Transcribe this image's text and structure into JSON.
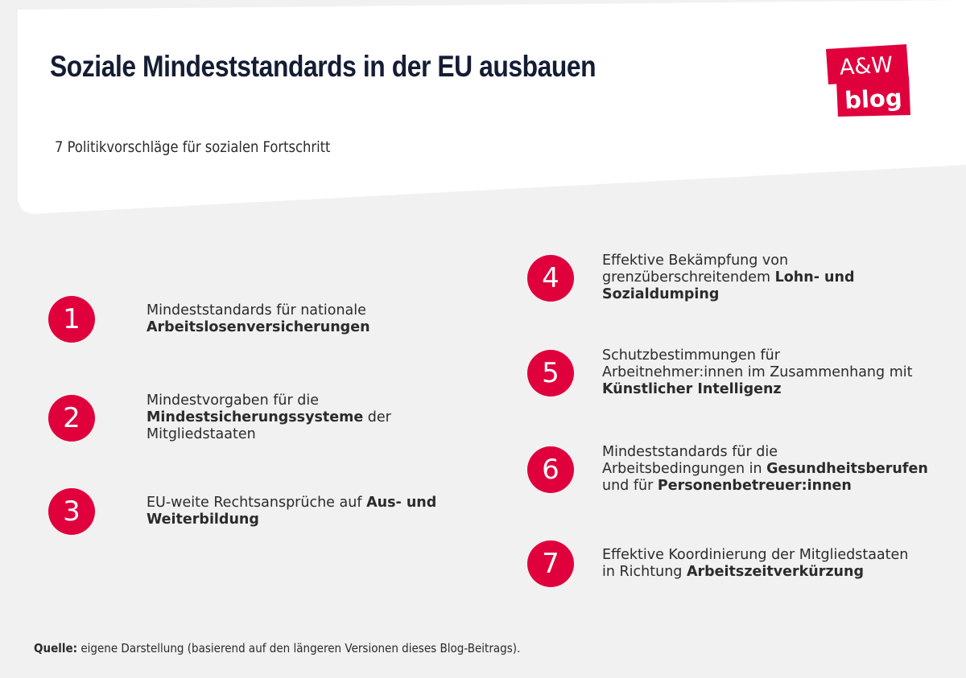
{
  "header": {
    "title": "Soziale Mindeststandards in der EU ausbauen",
    "subtitle": "7 Politikvorschläge für sozialen Fortschritt",
    "logo": {
      "line1": "A&W",
      "line2": "blog"
    }
  },
  "colors": {
    "accent": "#e0003c",
    "title": "#141d33",
    "background": "#f1f1f1"
  },
  "proposals": [
    {
      "number": "1",
      "l1a": "Mindeststandards für nationale",
      "l1b": "",
      "l2a": "",
      "l2b": "Arbeitslosenversicherungen",
      "l3a": "",
      "l3b": "",
      "l3c": ""
    },
    {
      "number": "2",
      "l1a": "Mindestvorgaben für die",
      "l1b": "",
      "l2a": "",
      "l2b": "Mindestsicherungssysteme",
      "l2c": " der",
      "l3a": "Mitgliedstaaten"
    },
    {
      "number": "3",
      "l1a": "EU-weite Rechtsansprüche auf ",
      "l1b": "Aus- und",
      "l2b": "Weiterbildung"
    },
    {
      "number": "4",
      "l1a": "Effektive Bekämpfung von",
      "l2a": "grenzüberschreitendem ",
      "l2b": "Lohn- und",
      "l3b": "Sozialdumping"
    },
    {
      "number": "5",
      "l1a": "Schutzbestimmungen für",
      "l2a": "Arbeitnehmer:innen im Zusammenhang mit",
      "l3b": "Künstlicher Intelligenz"
    },
    {
      "number": "6",
      "l1a": "Mindeststandards für die",
      "l2a": "Arbeitsbedingungen in ",
      "l2b": "Gesundheitsberufen",
      "l3a": "und für ",
      "l3b": "Personenbetreuer:innen"
    },
    {
      "number": "7",
      "l1a": "Effektive Koordinierung der Mitgliedstaaten",
      "l2a": "in Richtung ",
      "l2b": "Arbeitszeitverkürzung"
    }
  ],
  "footer": {
    "label": "Quelle:",
    "text": " eigene Darstellung (basierend auf den längeren Versionen dieses Blog-Beitrags)."
  }
}
